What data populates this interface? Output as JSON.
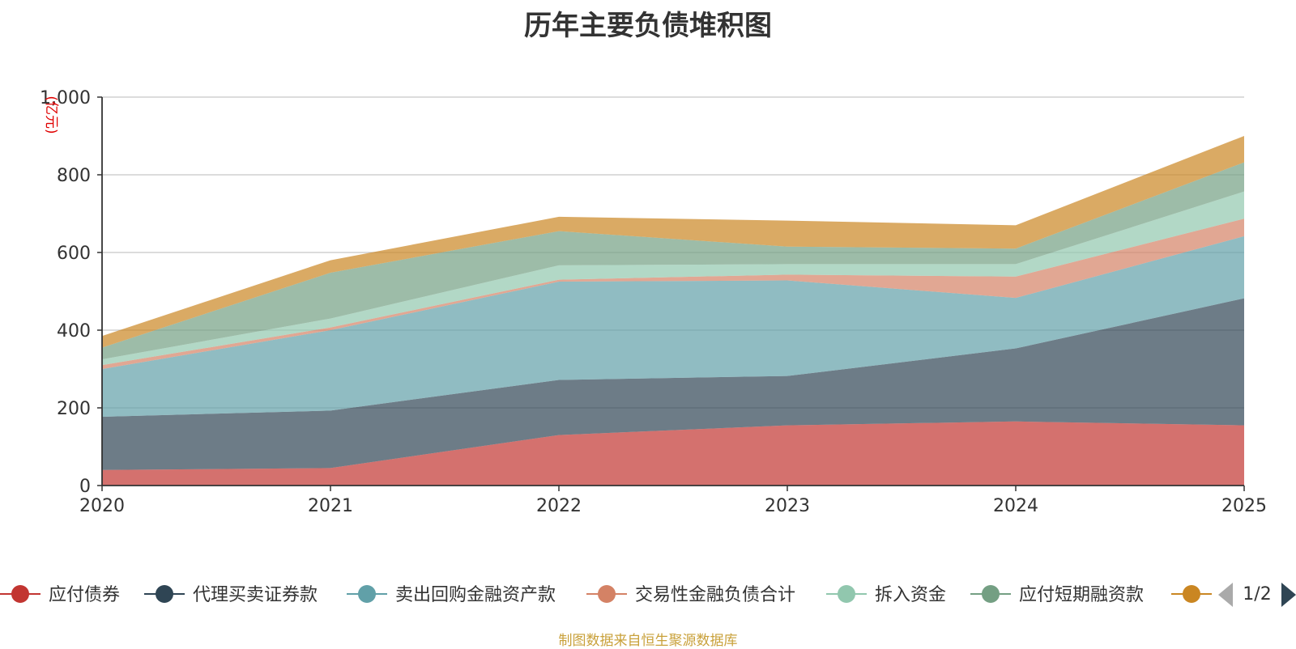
{
  "chart_data": {
    "type": "area",
    "stacked": true,
    "title": "历年主要负债堆积图",
    "ylabel": "(亿元)",
    "xlabel": "",
    "ylim": [
      0,
      1000
    ],
    "yticks": [
      0,
      200,
      400,
      600,
      800,
      1000
    ],
    "ytick_labels": [
      "0",
      "200",
      "400",
      "600",
      "800",
      "1,000"
    ],
    "x": [
      "2020",
      "2021",
      "2022",
      "2023",
      "2024",
      "2025"
    ],
    "grid": true,
    "legend_position": "bottom",
    "series": [
      {
        "name": "应付债券",
        "color": "#c23531",
        "values": [
          40,
          45,
          130,
          155,
          165,
          155
        ]
      },
      {
        "name": "代理买卖证券款",
        "color": "#2f4554",
        "values": [
          137,
          148,
          142,
          127,
          188,
          327
        ]
      },
      {
        "name": "卖出回购金融资产款",
        "color": "#61a0a8",
        "values": [
          123,
          207,
          253,
          246,
          130,
          160
        ]
      },
      {
        "name": "交易性金融负债合计",
        "color": "#d48265",
        "values": [
          10,
          7,
          5,
          15,
          55,
          45
        ]
      },
      {
        "name": "拆入资金",
        "color": "#91c7ae",
        "values": [
          15,
          23,
          37,
          27,
          32,
          70
        ]
      },
      {
        "name": "应付短期融资款",
        "color": "#749f83",
        "values": [
          30,
          118,
          88,
          45,
          40,
          75
        ]
      },
      {
        "name": "",
        "color": "#ca8622",
        "values": [
          30,
          32,
          37,
          67,
          60,
          68
        ]
      }
    ],
    "legend_page": "1/2"
  },
  "footer": {
    "source": "制图数据来自恒生聚源数据库"
  }
}
